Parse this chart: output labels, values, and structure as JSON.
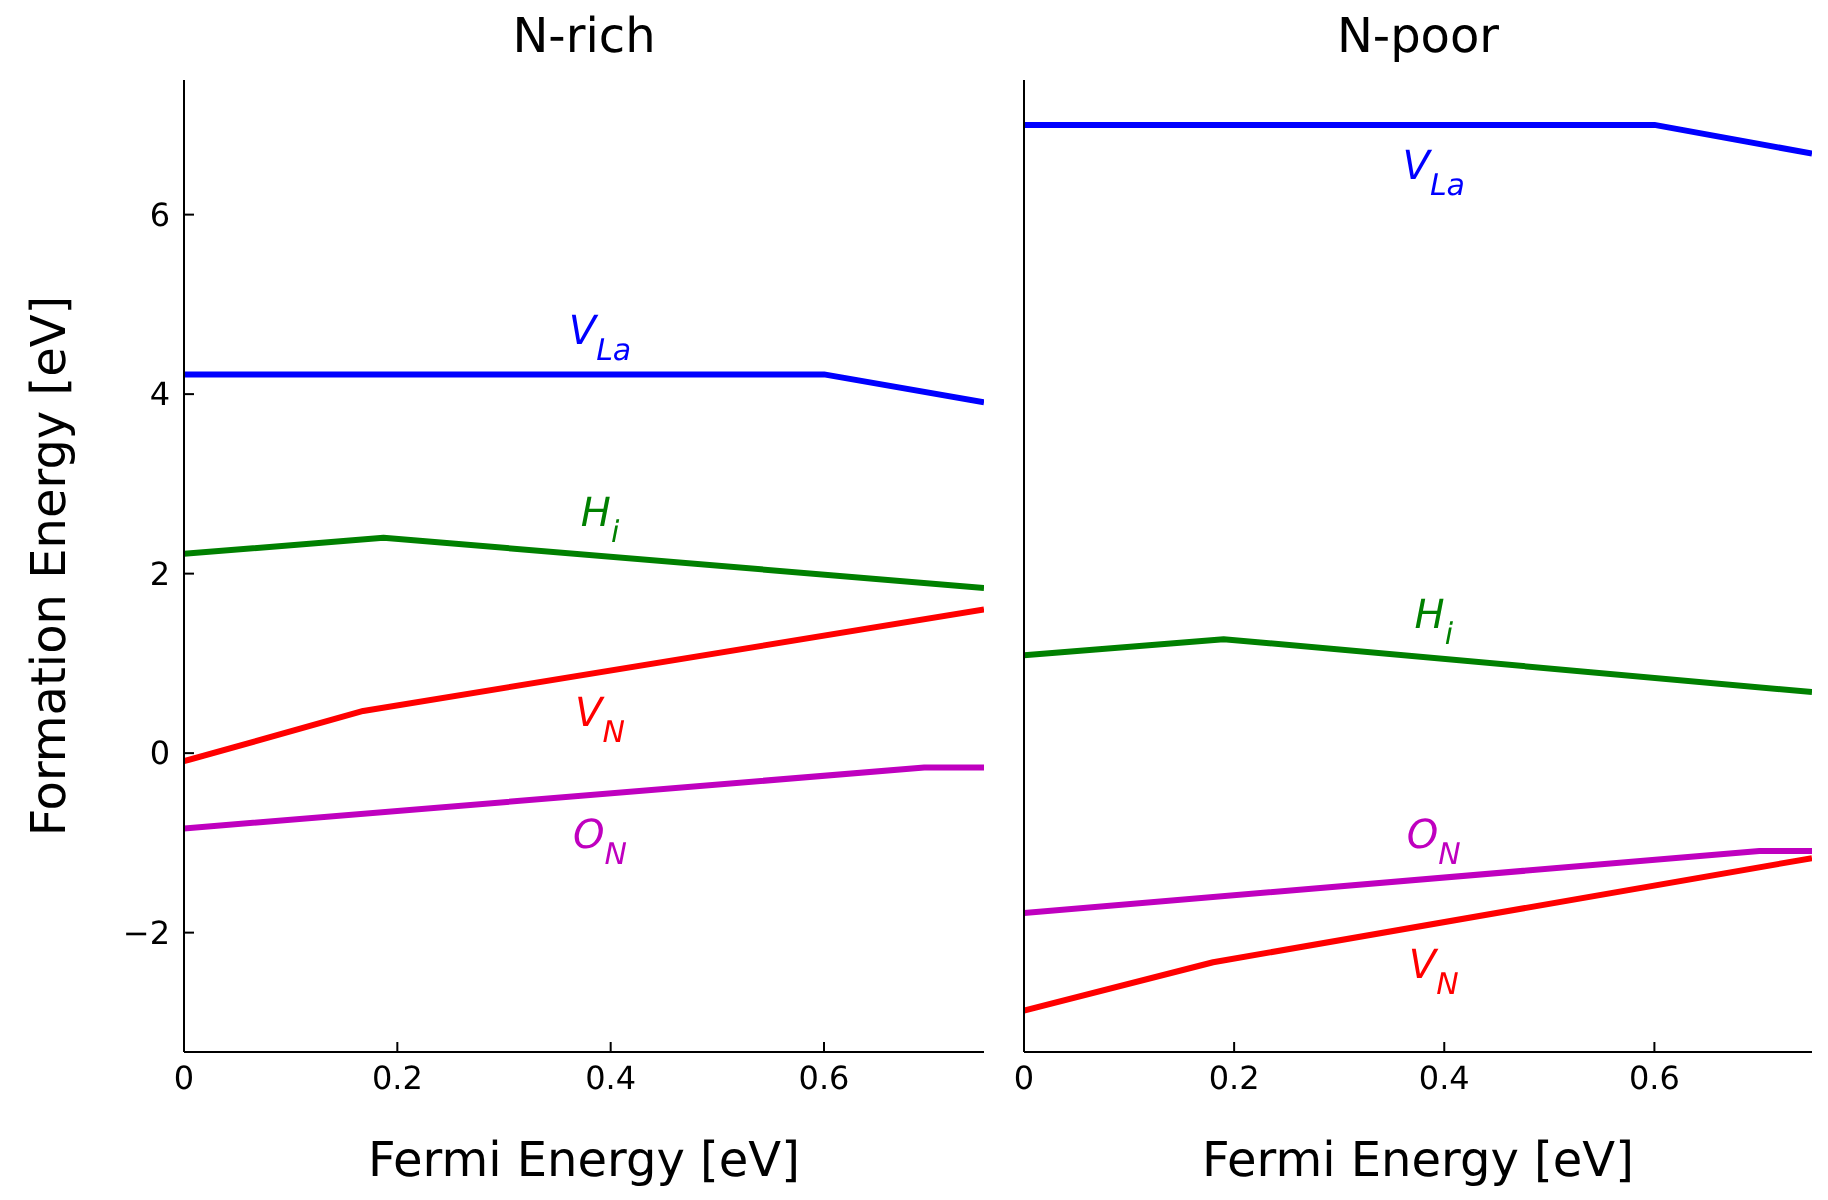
{
  "chart_data": [
    {
      "type": "line",
      "title": "N-rich",
      "xlabel": "Fermi Energy [eV]",
      "ylabel": "Formation Energy [eV]",
      "xlim": [
        0,
        0.75
      ],
      "xticks": [
        0,
        0.2,
        0.4,
        0.6
      ],
      "ylim": [
        -3.33,
        7.5
      ],
      "yticks": [
        -2,
        0,
        2,
        4,
        6
      ],
      "grid": false,
      "marker": "none",
      "line_style": "solid",
      "series": [
        {
          "name": "V$_{La}$",
          "color": "#0000ff",
          "x": [
            0,
            0.6,
            0.75
          ],
          "values": [
            4.22,
            4.22,
            3.91
          ]
        },
        {
          "name": "H$_{i}$",
          "color": "#008000",
          "x": [
            0,
            0.187,
            0.75
          ],
          "values": [
            2.22,
            2.4,
            1.84
          ]
        },
        {
          "name": "V$_{N}$",
          "color": "#ff0000",
          "x": [
            0,
            0.168,
            0.75
          ],
          "values": [
            -0.09,
            0.47,
            1.6
          ]
        },
        {
          "name": "O$_{N}$",
          "color": "#bf00bf",
          "x": [
            0,
            0.694,
            0.75
          ],
          "values": [
            -0.84,
            -0.16,
            -0.16
          ]
        }
      ]
    },
    {
      "type": "line",
      "title": "N-poor",
      "xlabel": "Fermi Energy [eV]",
      "xlim": [
        0,
        0.75
      ],
      "xticks": [
        0,
        0.2,
        0.4,
        0.6
      ],
      "ylim": [
        -3.33,
        7.5
      ],
      "yticks": [
        -2,
        0,
        2,
        4,
        6
      ],
      "tick_labels": "x",
      "grid": false,
      "marker": "none",
      "line_style": "solid",
      "series": [
        {
          "name": "V$_{La}$",
          "color": "#0000ff",
          "x": [
            0,
            0.6,
            0.75
          ],
          "values": [
            7.0,
            7.0,
            6.68
          ]
        },
        {
          "name": "H$_{i}$",
          "color": "#008000",
          "x": [
            0,
            0.19,
            0.75
          ],
          "values": [
            1.09,
            1.27,
            0.68
          ]
        },
        {
          "name": "O$_{N}$",
          "color": "#bf00bf",
          "x": [
            0,
            0.7,
            0.75
          ],
          "values": [
            -1.78,
            -1.09,
            -1.09
          ]
        },
        {
          "name": "V$_{N}$",
          "color": "#ff0000",
          "x": [
            0,
            0.18,
            0.75
          ],
          "values": [
            -2.87,
            -2.33,
            -1.17
          ]
        }
      ]
    }
  ]
}
